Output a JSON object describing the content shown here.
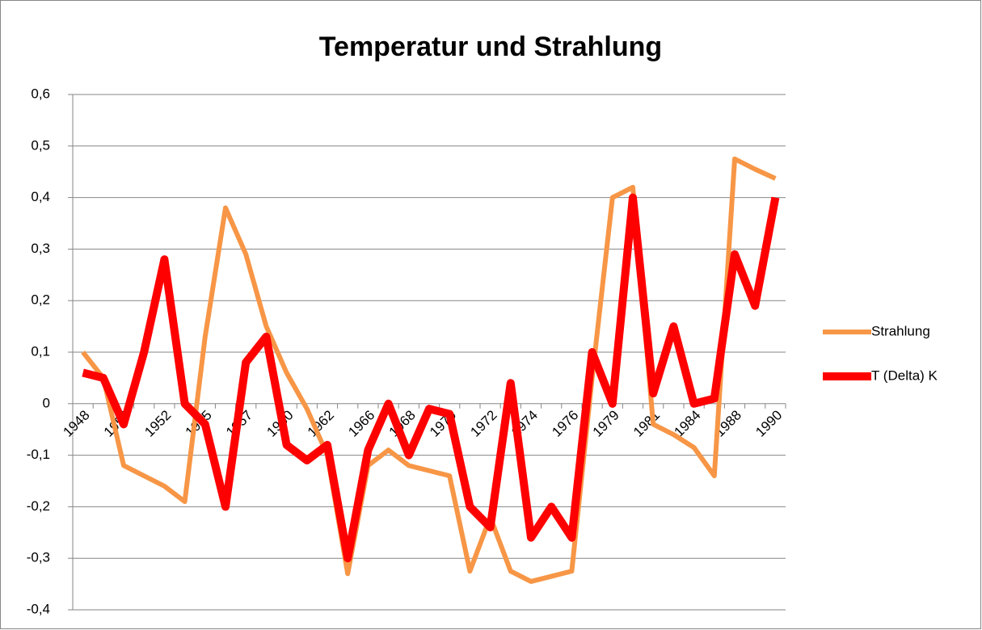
{
  "chart_data": {
    "type": "line",
    "title": "Temperatur und Strahlung",
    "categories": [
      "1948",
      null,
      "1950",
      null,
      "1952",
      null,
      "1955",
      null,
      "1957",
      null,
      "1960",
      null,
      "1962",
      null,
      "1966",
      null,
      "1968",
      null,
      "1970",
      null,
      "1972",
      null,
      "1974",
      null,
      "1976",
      null,
      "1979",
      null,
      "1981",
      null,
      "1984",
      null,
      "1988",
      null,
      "1990"
    ],
    "series": [
      {
        "name": "Strahlung",
        "color": "#f79646",
        "values": [
          0.1,
          0.05,
          -0.12,
          -0.14,
          -0.16,
          -0.19,
          0.13,
          0.38,
          0.29,
          0.15,
          0.06,
          -0.01,
          -0.1,
          -0.33,
          -0.12,
          -0.09,
          -0.12,
          -0.13,
          -0.14,
          -0.325,
          -0.22,
          -0.325,
          -0.345,
          -0.335,
          -0.325,
          0.05,
          0.4,
          0.42,
          -0.04,
          -0.06,
          -0.085,
          -0.14,
          0.475,
          0.455,
          0.437
        ]
      },
      {
        "name": "T (Delta) K",
        "color": "#ff0000",
        "values": [
          0.06,
          0.05,
          -0.04,
          0.1,
          0.28,
          0,
          -0.04,
          -0.2,
          0.08,
          0.13,
          -0.08,
          -0.11,
          -0.08,
          -0.3,
          -0.09,
          0,
          -0.1,
          -0.01,
          -0.02,
          -0.2,
          -0.24,
          0.04,
          -0.26,
          -0.2,
          -0.26,
          0.1,
          0,
          0.4,
          0.02,
          0.15,
          0,
          0.01,
          0.29,
          0.19,
          0.4
        ]
      }
    ],
    "ylim": [
      -0.4,
      0.6
    ],
    "yticks": [
      {
        "value": -0.4,
        "label": "-0,4"
      },
      {
        "value": -0.3,
        "label": "-0,3"
      },
      {
        "value": -0.2,
        "label": "-0,2"
      },
      {
        "value": -0.1,
        "label": "-0,1"
      },
      0,
      {
        "value": 0.1,
        "label": "0,1"
      },
      {
        "value": 0.2,
        "label": "0,2"
      },
      {
        "value": 0.3,
        "label": "0,3"
      },
      {
        "value": 0.4,
        "label": "0,4"
      },
      {
        "value": 0.5,
        "label": "0,5"
      },
      {
        "value": 0.6,
        "label": "0,6"
      }
    ],
    "grid": true,
    "legend": "right"
  }
}
